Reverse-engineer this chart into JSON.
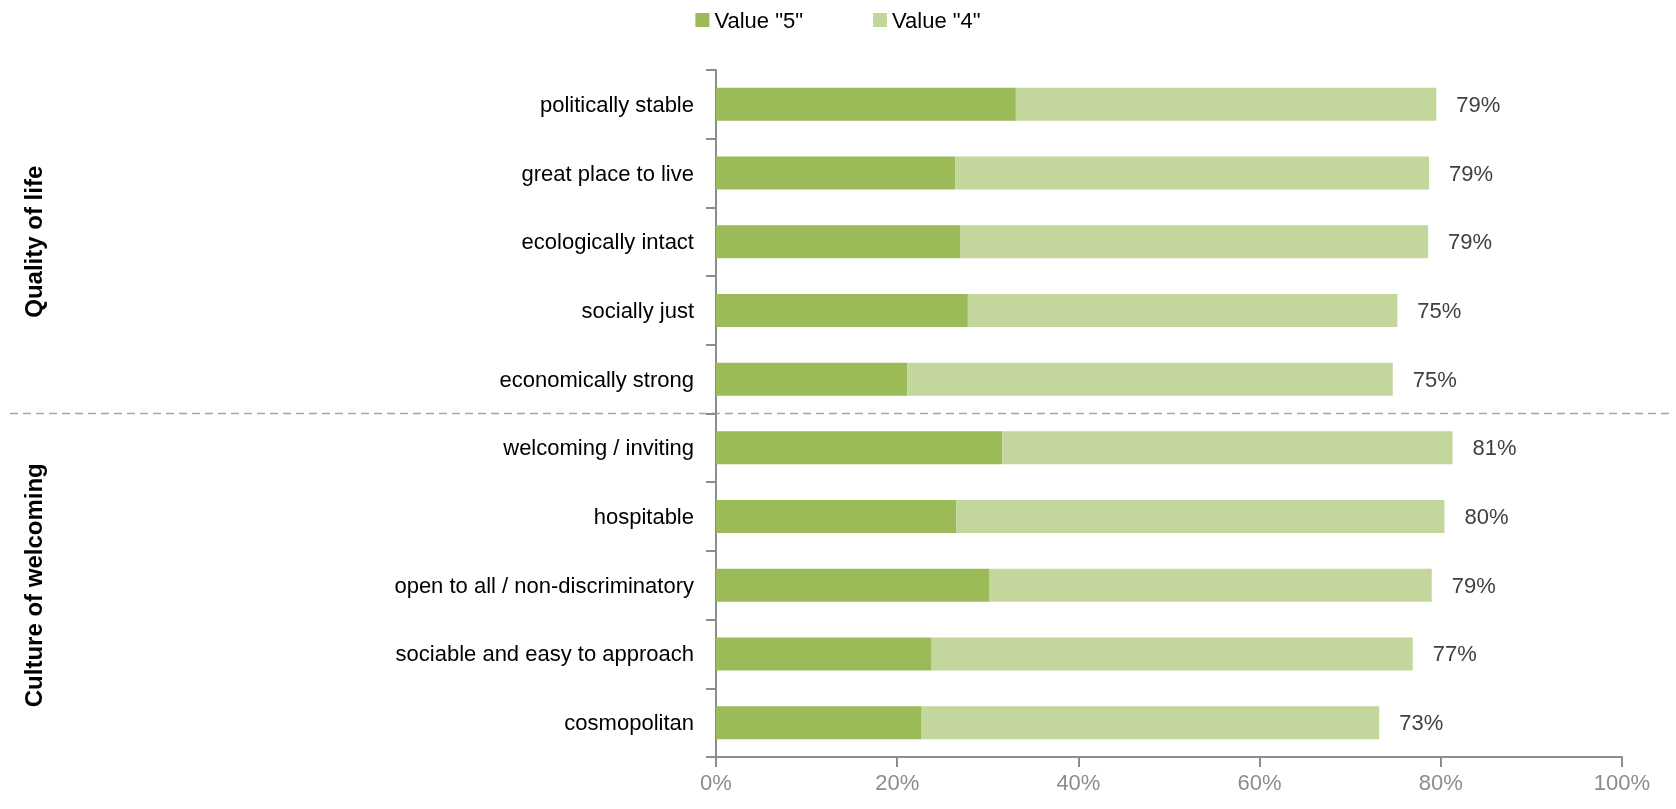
{
  "chart_data": {
    "type": "bar",
    "orientation": "horizontal",
    "stacked": true,
    "categories": [
      "politically stable",
      "great place to live",
      "ecologically intact",
      "socially just",
      "economically strong",
      "welcoming / inviting",
      "hospitable",
      "open to all / non-discriminatory",
      "sociable and easy to approach",
      "cosmopolitan"
    ],
    "series": [
      {
        "name": "Value \"5\"",
        "color": "#9bbb59",
        "values": [
          33.1,
          26.4,
          27.0,
          27.8,
          21.1,
          31.6,
          26.5,
          30.2,
          23.8,
          22.7
        ]
      },
      {
        "name": "Value \"4\"",
        "color": "#c3d69b",
        "values": [
          46.4,
          52.3,
          51.6,
          47.4,
          53.6,
          49.7,
          53.9,
          48.8,
          53.1,
          50.5
        ]
      }
    ],
    "totals": [
      "79%",
      "79%",
      "79%",
      "75%",
      "75%",
      "81%",
      "80%",
      "79%",
      "77%",
      "73%"
    ],
    "xlim": [
      0,
      100
    ],
    "xticks": [
      {
        "value": 0,
        "label": "0%"
      },
      {
        "value": 20,
        "label": "20%"
      },
      {
        "value": 40,
        "label": "40%"
      },
      {
        "value": 60,
        "label": "60%"
      },
      {
        "value": 80,
        "label": "80%"
      },
      {
        "value": 100,
        "label": "100%"
      }
    ],
    "annotations": [
      "Quality of life",
      "Culture of welcoming"
    ],
    "legend": "top",
    "grid": false
  }
}
